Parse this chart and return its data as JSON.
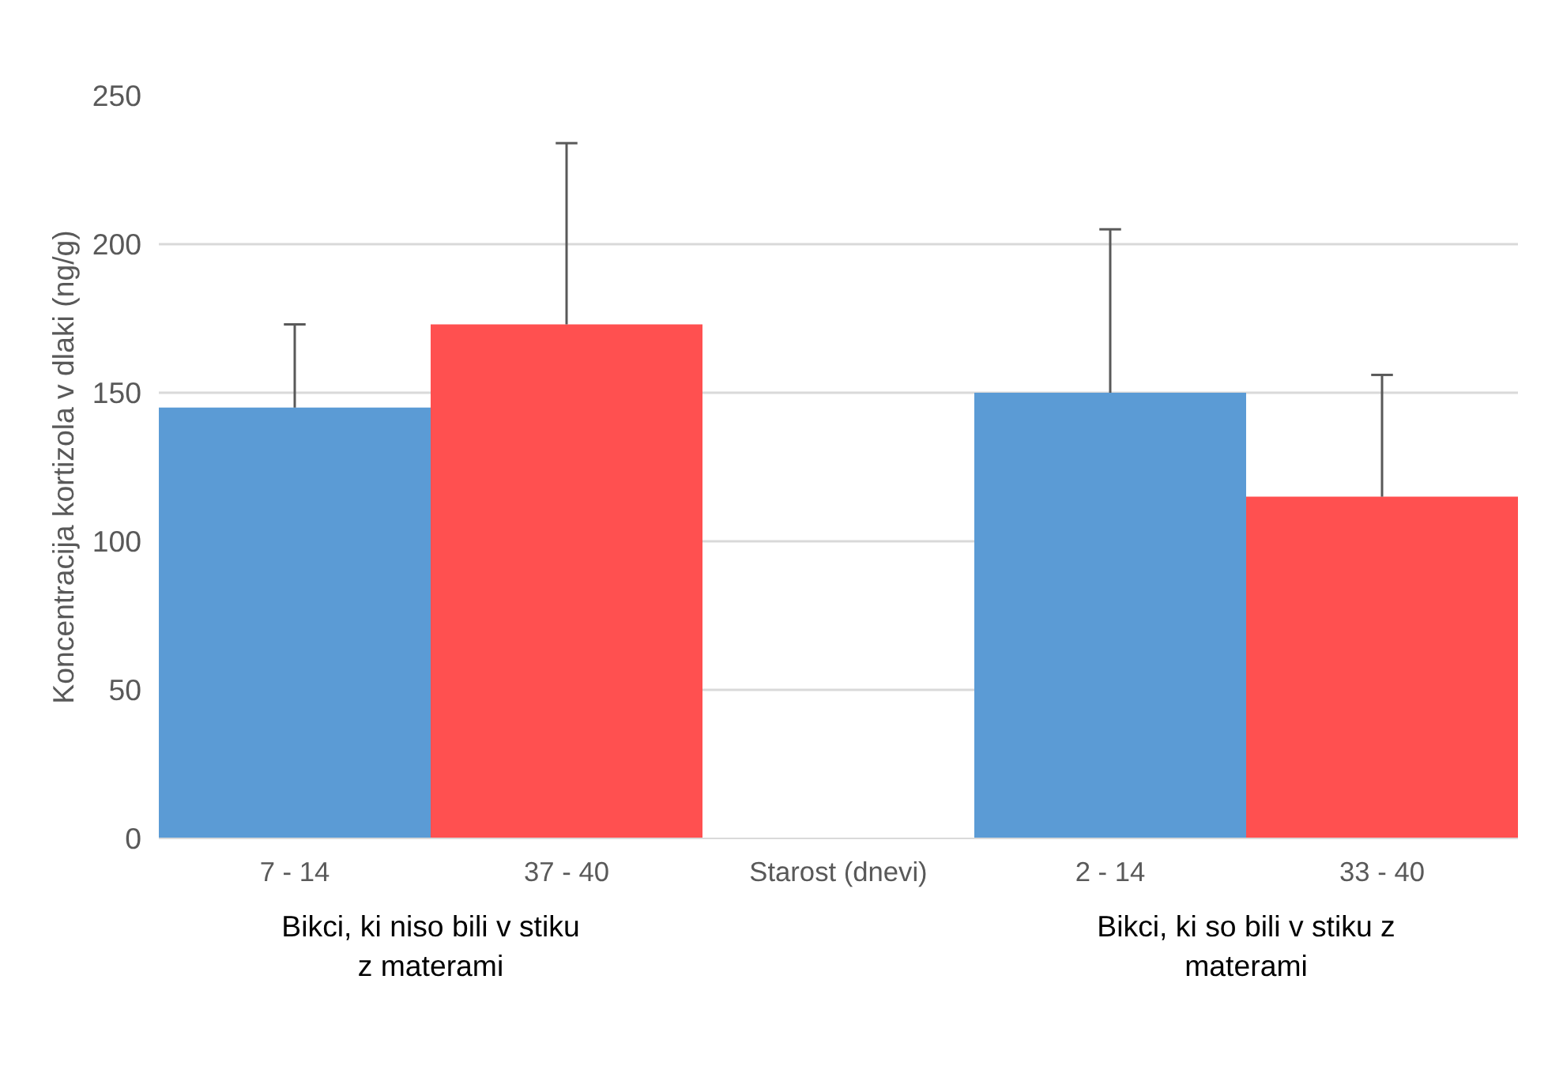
{
  "chart_data": {
    "type": "bar",
    "categories": [
      "7 - 14",
      "37 - 40",
      null,
      "2 - 14",
      "33 - 40"
    ],
    "values": [
      145,
      173,
      null,
      150,
      115
    ],
    "colors": [
      "#5b9bd5",
      "#ff5050",
      null,
      "#5b9bd5",
      "#ff5050"
    ],
    "errors": [
      [
        145,
        173
      ],
      [
        173,
        234
      ],
      null,
      [
        150,
        205
      ],
      [
        115,
        156
      ]
    ],
    "xlabel": "Starost (dnevi)",
    "ylabel": "Koncentracija kortizola v dlaki (ng/g)",
    "ylim": [
      0,
      250
    ],
    "yticks": [
      0,
      50,
      100,
      150,
      200,
      250
    ],
    "grid": "y",
    "annotations": [
      "Bikci, ki niso bili v stiku z materami",
      "Bikci, ki so bili v stiku z materami"
    ]
  }
}
